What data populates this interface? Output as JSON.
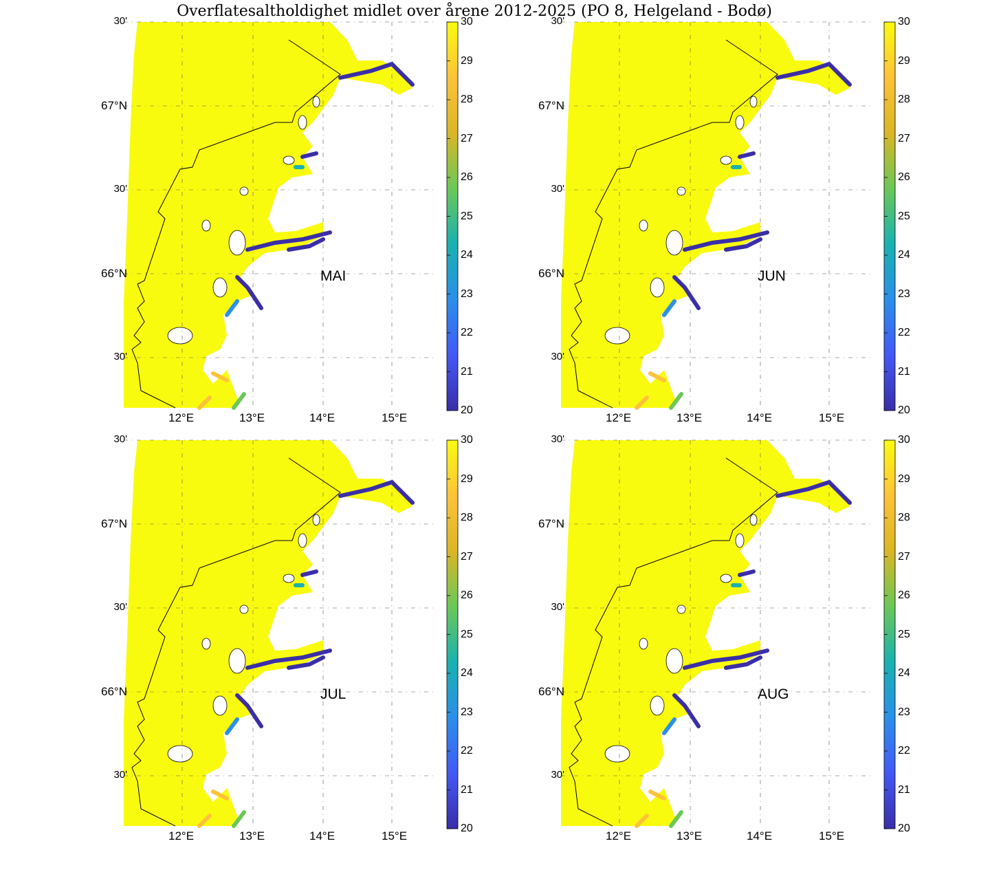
{
  "title": "Overflatesaltholdighet midlet over årene 2012-2025 (PO 8, Helgeland - Bodø)",
  "colorbar": {
    "ticks": [
      "30",
      "29",
      "28",
      "27",
      "26",
      "25",
      "24",
      "23",
      "22",
      "21",
      "20"
    ],
    "colors": [
      "#f9fb0e",
      "#fec23a",
      "#dab627",
      "#6bc858",
      "#1ab1b0",
      "#2b8fea",
      "#4359f5",
      "#3a2ea8"
    ]
  },
  "map": {
    "lat_labels": [
      "30'",
      "67°N",
      "30'",
      "66°N",
      "30'"
    ],
    "lon_labels": [
      "12°E",
      "13°E",
      "14°E",
      "15°E"
    ],
    "sea_color": "#f9fb0e"
  },
  "panels": [
    {
      "month": "MAI"
    },
    {
      "month": "JUN"
    },
    {
      "month": "JUL"
    },
    {
      "month": "AUG"
    }
  ]
}
